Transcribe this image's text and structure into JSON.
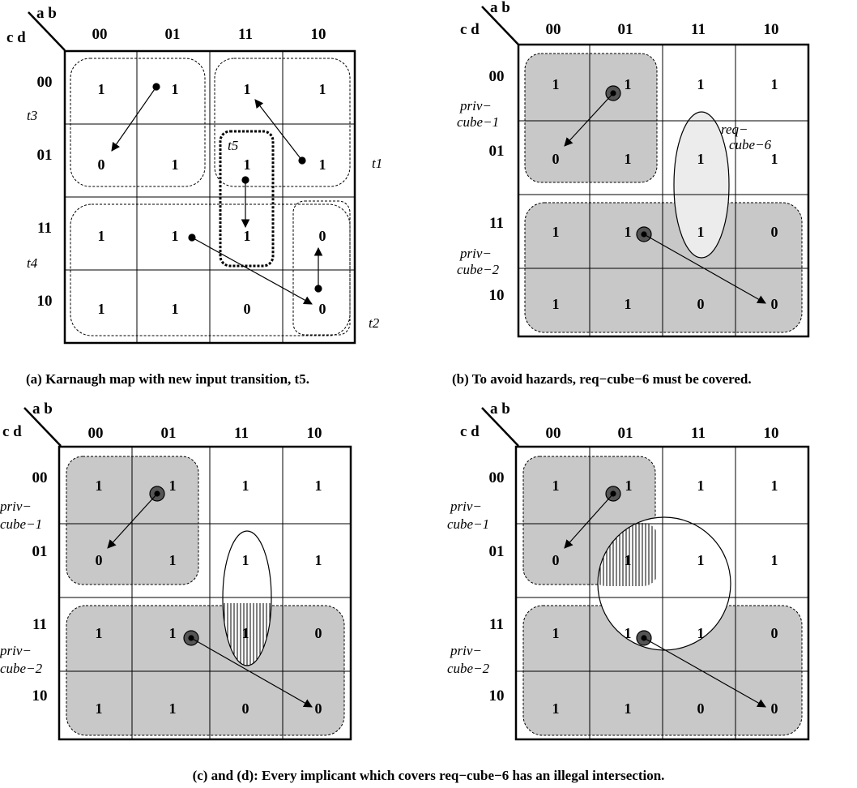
{
  "common": {
    "ab_label": "a b",
    "cd_label": "c d",
    "col_labels": [
      "00",
      "01",
      "11",
      "10"
    ],
    "row_labels": [
      "00",
      "01",
      "11",
      "10"
    ]
  },
  "panels": [
    {
      "id": "a",
      "caption": "(a) Karnaugh map with new input transition, t5.",
      "cells": [
        [
          "1",
          "1",
          "1",
          "1"
        ],
        [
          "0",
          "1",
          "1",
          "1"
        ],
        [
          "1",
          "1",
          "1",
          "0"
        ],
        [
          "1",
          "1",
          "0",
          "0"
        ]
      ],
      "transition_labels": [
        "t1",
        "t2",
        "t3",
        "t4",
        "t5"
      ]
    },
    {
      "id": "b",
      "caption": "(b) To avoid hazards, req−cube−6 must be covered.",
      "cells": [
        [
          "1",
          "1",
          "1",
          "1"
        ],
        [
          "0",
          "1",
          "1",
          "1"
        ],
        [
          "1",
          "1",
          "1",
          "0"
        ],
        [
          "1",
          "1",
          "0",
          "0"
        ]
      ],
      "priv_cube_1": [
        "priv−",
        "cube−1"
      ],
      "priv_cube_2": [
        "priv−",
        "cube−2"
      ],
      "req_cube_6": [
        "req−",
        "cube−6"
      ]
    },
    {
      "id": "c",
      "cells": [
        [
          "1",
          "1",
          "1",
          "1"
        ],
        [
          "0",
          "1",
          "1",
          "1"
        ],
        [
          "1",
          "1",
          "1",
          "0"
        ],
        [
          "1",
          "1",
          "0",
          "0"
        ]
      ],
      "priv_cube_1": [
        "priv−",
        "cube−1"
      ],
      "priv_cube_2": [
        "priv−",
        "cube−2"
      ]
    },
    {
      "id": "d",
      "cells": [
        [
          "1",
          "1",
          "1",
          "1"
        ],
        [
          "0",
          "1",
          "1",
          "1"
        ],
        [
          "1",
          "1",
          "1",
          "0"
        ],
        [
          "1",
          "1",
          "0",
          "0"
        ]
      ],
      "priv_cube_1": [
        "priv−",
        "cube−1"
      ],
      "priv_cube_2": [
        "priv−",
        "cube−2"
      ]
    }
  ],
  "bottom_caption": "(c) and (d):  Every implicant which covers req−cube−6 has an illegal intersection."
}
